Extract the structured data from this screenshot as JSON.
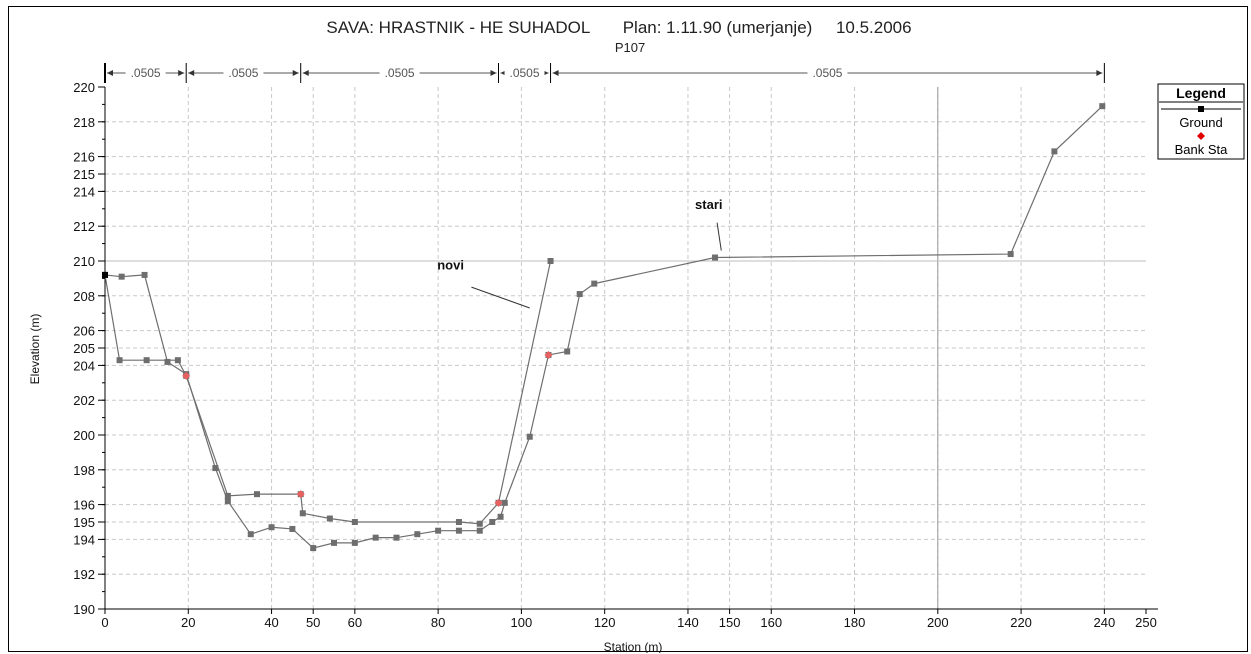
{
  "chart_data": {
    "type": "line",
    "title": "SAVA: HRASTNIK - HE SUHADOL       Plan: 1.11.90 (umerjanje)     10.5.2006",
    "subtitle": "P107",
    "xlabel": "Station (m)",
    "ylabel": "Elevation (m)",
    "xlim": [
      0,
      250
    ],
    "ylim": [
      190,
      220
    ],
    "x_ticks": [
      0,
      20,
      40,
      50,
      60,
      80,
      100,
      120,
      140,
      150,
      160,
      180,
      200,
      220,
      240,
      250
    ],
    "y_ticks": [
      190,
      192,
      194,
      195,
      196,
      198,
      200,
      202,
      204,
      205,
      206,
      208,
      210,
      212,
      214,
      215,
      216,
      218,
      220
    ],
    "grid": true,
    "legend": {
      "title": "Legend",
      "position": "right",
      "entries": [
        {
          "label": "Ground",
          "color": "#000000",
          "marker": "square"
        },
        {
          "label": "Bank Sta",
          "color": "#e00000",
          "marker": "diamond"
        }
      ]
    },
    "manning_n": {
      "labels": [
        ".0505",
        ".0505",
        ".0505",
        ".0505",
        ".0505",
        ".0505"
      ],
      "boundaries": [
        0,
        19.5,
        47,
        94.5,
        107,
        240
      ]
    },
    "annotations": [
      {
        "text": "novi",
        "x": 83,
        "y": 209.5
      },
      {
        "text": "stari",
        "x": 145,
        "y": 213
      }
    ],
    "series": [
      {
        "name": "novi",
        "color": "#6e6e6e",
        "x": [
          0,
          3.5,
          10,
          17.5,
          19.5,
          29.5,
          36.5,
          47,
          47.5,
          54,
          60,
          85,
          90,
          94.5,
          107
        ],
        "y": [
          209.2,
          204.3,
          204.3,
          204.3,
          203.4,
          196.5,
          196.6,
          196.6,
          195.5,
          195.2,
          195.0,
          195.0,
          194.9,
          196.1,
          210.0
        ]
      },
      {
        "name": "stari",
        "color": "#6e6e6e",
        "x": [
          0,
          4,
          9.5,
          15,
          19.5,
          26.5,
          29.5,
          35,
          40,
          45,
          50,
          55,
          60,
          65,
          70,
          75,
          80,
          85,
          90,
          93,
          95,
          96,
          102,
          106.5,
          111,
          114,
          117.5,
          146.5,
          217.5,
          228,
          239.5
        ],
        "y": [
          209.2,
          209.1,
          209.2,
          204.2,
          203.5,
          198.1,
          196.2,
          194.3,
          194.7,
          194.6,
          193.5,
          193.8,
          193.8,
          194.1,
          194.1,
          194.3,
          194.5,
          194.5,
          194.5,
          195.0,
          195.3,
          196.1,
          199.9,
          204.6,
          204.8,
          208.1,
          208.7,
          210.2,
          210.4,
          216.3,
          218.9
        ]
      }
    ],
    "bank_stations": [
      {
        "x": 19.5,
        "y": 203.4
      },
      {
        "x": 47,
        "y": 196.6
      },
      {
        "x": 94.5,
        "y": 196.1
      },
      {
        "x": 106.5,
        "y": 204.6
      }
    ]
  }
}
